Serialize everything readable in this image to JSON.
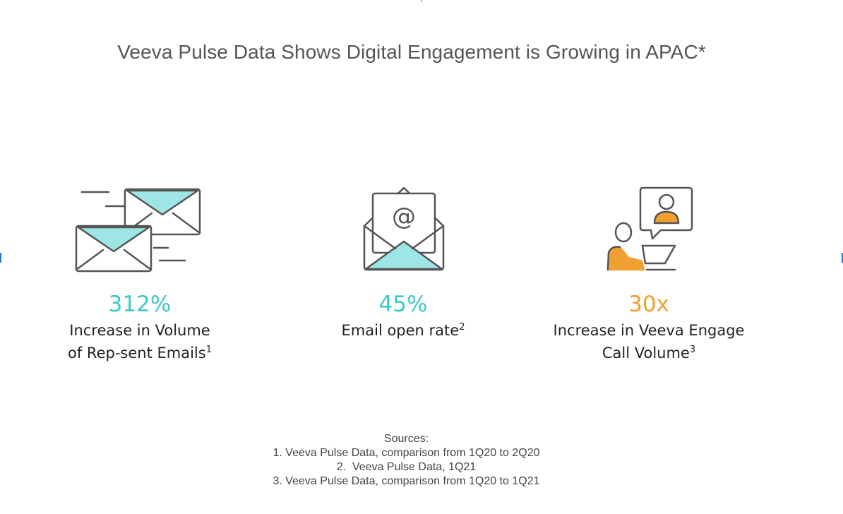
{
  "title": "Veeva Pulse Data Shows Digital Engagement is Growing in APAC*",
  "colors": {
    "teal": "#3cc8c8",
    "orange": "#f0a030",
    "stroke": "#555555"
  },
  "stats": [
    {
      "value": "312%",
      "line1": "Increase in Volume",
      "line2": "of Rep-sent Emails",
      "sup": "1",
      "icon": "envelopes-icon"
    },
    {
      "value": "45%",
      "line1": "Email open rate",
      "sup": "2",
      "icon": "open-envelope-at-icon"
    },
    {
      "value": "30x",
      "line1": "Increase in Veeva Engage",
      "line2": "Call Volume",
      "sup": "3",
      "icon": "video-call-icon"
    }
  ],
  "icons": {
    "at_symbol": "@"
  },
  "sources": {
    "heading": "Sources:",
    "items": [
      "1. Veeva Pulse Data, comparison from 1Q20 to 2Q20",
      "2.  Veeva Pulse Data, 1Q21",
      "3. Veeva Pulse Data, comparison from 1Q20 to 1Q21"
    ]
  }
}
